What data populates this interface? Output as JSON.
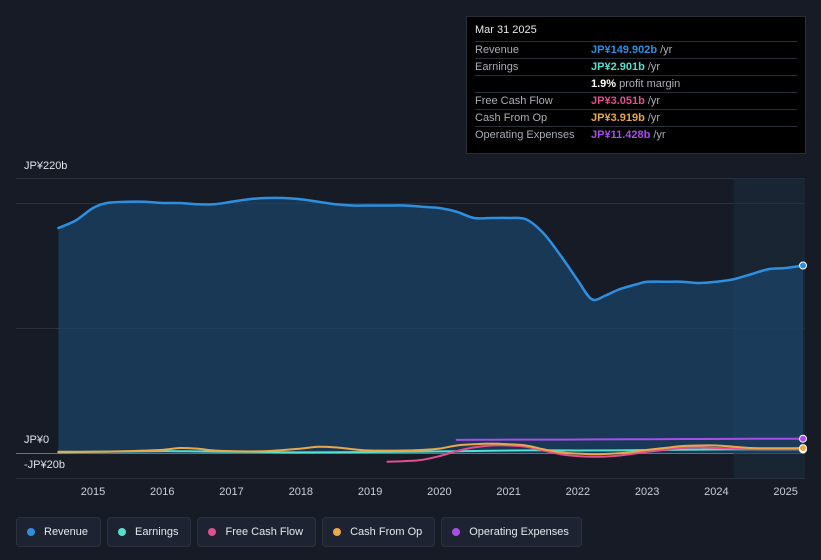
{
  "tooltip": {
    "date": "Mar 31 2025",
    "rows": [
      {
        "label": "Revenue",
        "value": "JP¥149.902b",
        "unit": "/yr",
        "color": "#2e8fe0"
      },
      {
        "label": "Earnings",
        "value": "JP¥2.901b",
        "unit": "/yr",
        "color": "#54e0cf"
      },
      {
        "label": "",
        "value": "1.9%",
        "unit": "profit margin",
        "color": "#ffffff"
      },
      {
        "label": "Free Cash Flow",
        "value": "JP¥3.051b",
        "unit": "/yr",
        "color": "#e0508e"
      },
      {
        "label": "Cash From Op",
        "value": "JP¥3.919b",
        "unit": "/yr",
        "color": "#e8a84b"
      },
      {
        "label": "Operating Expenses",
        "value": "JP¥11.428b",
        "unit": "/yr",
        "color": "#a64ee8"
      }
    ]
  },
  "legend": [
    {
      "label": "Revenue",
      "color": "#2e8fe0"
    },
    {
      "label": "Earnings",
      "color": "#54e0cf"
    },
    {
      "label": "Free Cash Flow",
      "color": "#e0508e"
    },
    {
      "label": "Cash From Op",
      "color": "#e8a84b"
    },
    {
      "label": "Operating Expenses",
      "color": "#a64ee8"
    }
  ],
  "chart_data": {
    "type": "line",
    "ylabels": {
      "top": "JP¥220b",
      "zero": "JP¥0",
      "bottom": "-JP¥20b"
    },
    "ylim": [
      -20,
      220
    ],
    "xlim": [
      2014.35,
      2025.25
    ],
    "xticks": [
      "2015",
      "2016",
      "2017",
      "2018",
      "2019",
      "2020",
      "2021",
      "2022",
      "2023",
      "2024",
      "2025"
    ],
    "highlight_from": 2024.25,
    "grid": true,
    "series": [
      {
        "name": "Revenue",
        "color": "#2e8fe0",
        "fill": true,
        "x": [
          2014.5,
          2014.75,
          2015.0,
          2015.2,
          2015.5,
          2015.75,
          2016.0,
          2016.25,
          2016.5,
          2016.75,
          2017.0,
          2017.25,
          2017.5,
          2017.75,
          2018.0,
          2018.25,
          2018.5,
          2018.75,
          2019.0,
          2019.25,
          2019.5,
          2019.75,
          2020.0,
          2020.25,
          2020.5,
          2020.75,
          2021.0,
          2021.25,
          2021.5,
          2021.75,
          2022.0,
          2022.2,
          2022.4,
          2022.6,
          2022.85,
          2023.0,
          2023.25,
          2023.5,
          2023.75,
          2024.0,
          2024.25,
          2024.5,
          2024.75,
          2025.0,
          2025.25
        ],
        "values": [
          180,
          186,
          196,
          200,
          201,
          201,
          200,
          200,
          199,
          199,
          201,
          203,
          204,
          204,
          203,
          201,
          199,
          198,
          198,
          198,
          198,
          197,
          196,
          193,
          188,
          188,
          188,
          187,
          176,
          158,
          138,
          123,
          126,
          131,
          135,
          137,
          137,
          137,
          136,
          137,
          139,
          143,
          147,
          148,
          150
        ]
      },
      {
        "name": "Earnings",
        "color": "#54e0cf",
        "fill": false,
        "x": [
          2014.5,
          2015.0,
          2015.5,
          2016.0,
          2016.5,
          2017.0,
          2017.5,
          2018.0,
          2018.5,
          2019.0,
          2019.5,
          2020.0,
          2020.5,
          2021.0,
          2021.5,
          2022.0,
          2022.5,
          2023.0,
          2023.5,
          2024.0,
          2024.5,
          2025.0,
          2025.25
        ],
        "values": [
          0.5,
          1.0,
          1.2,
          1.5,
          1.3,
          1.0,
          0.8,
          0.5,
          0.6,
          0.8,
          1.0,
          1.3,
          1.6,
          2.0,
          2.2,
          2.0,
          2.1,
          2.4,
          2.6,
          2.8,
          2.9,
          2.9,
          2.9
        ]
      },
      {
        "name": "Free Cash Flow",
        "color": "#e0508e",
        "fill": false,
        "x": [
          2019.25,
          2019.5,
          2019.75,
          2020.0,
          2020.25,
          2020.5,
          2020.75,
          2021.0,
          2021.25,
          2021.5,
          2021.75,
          2022.0,
          2022.25,
          2022.5,
          2022.75,
          2023.0,
          2023.25,
          2023.5,
          2023.75,
          2024.0,
          2024.25,
          2024.5,
          2024.75,
          2025.0,
          2025.25
        ],
        "values": [
          -7,
          -6.5,
          -5.5,
          -2.5,
          1.5,
          4.5,
          6,
          6,
          5,
          2,
          -1,
          -2.5,
          -3,
          -2.5,
          -1,
          1,
          2.5,
          4,
          4.5,
          4,
          3.5,
          3,
          3,
          3,
          3.05
        ]
      },
      {
        "name": "Cash From Op",
        "color": "#e8a84b",
        "fill": false,
        "x": [
          2014.5,
          2015.0,
          2015.5,
          2016.0,
          2016.25,
          2016.5,
          2016.75,
          2017.0,
          2017.5,
          2018.0,
          2018.25,
          2018.5,
          2018.75,
          2019.0,
          2019.5,
          2019.75,
          2020.0,
          2020.25,
          2020.5,
          2020.75,
          2021.0,
          2021.25,
          2021.5,
          2021.75,
          2022.0,
          2022.25,
          2022.5,
          2022.75,
          2023.0,
          2023.25,
          2023.5,
          2023.75,
          2024.0,
          2024.25,
          2024.5,
          2024.75,
          2025.0,
          2025.25
        ],
        "values": [
          1,
          1,
          1.5,
          2.5,
          4,
          3.5,
          2,
          1.5,
          1.5,
          3.5,
          5,
          4.5,
          3,
          2,
          2,
          2.5,
          3.5,
          6,
          7,
          7.5,
          7,
          6,
          3,
          0.5,
          -0.5,
          -1,
          -0.5,
          0.5,
          2.5,
          4,
          5.5,
          6,
          6,
          5,
          4,
          3.8,
          3.8,
          3.9
        ]
      },
      {
        "name": "Operating Expenses",
        "color": "#a64ee8",
        "fill": false,
        "x": [
          2020.25,
          2020.75,
          2021.25,
          2021.75,
          2022.25,
          2022.75,
          2023.25,
          2023.75,
          2024.25,
          2024.75,
          2025.25
        ],
        "values": [
          10.5,
          10.6,
          10.7,
          10.7,
          10.9,
          11.0,
          11.1,
          11.2,
          11.3,
          11.4,
          11.43
        ]
      }
    ]
  }
}
